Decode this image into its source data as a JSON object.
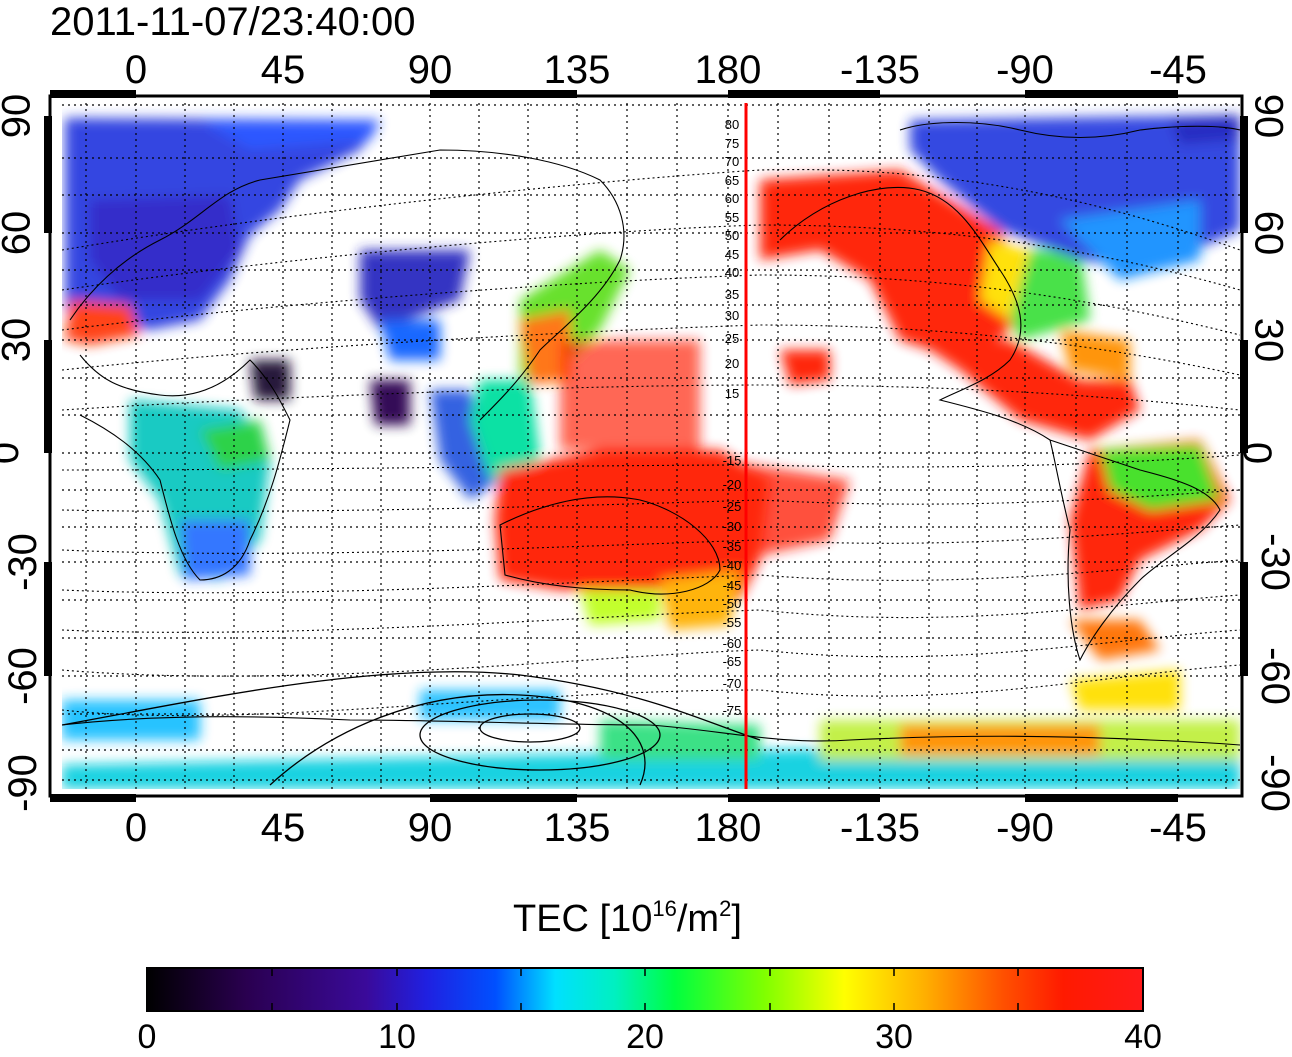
{
  "title": "2011-11-07/23:40:00",
  "x_ticks_top": [
    "0",
    "45",
    "90",
    "135",
    "180",
    "-135",
    "-90",
    "-45"
  ],
  "x_ticks_bottom": [
    "0",
    "45",
    "90",
    "135",
    "180",
    "-135",
    "-90",
    "-45"
  ],
  "y_ticks_left": [
    "90",
    "60",
    "30",
    "0",
    "-30",
    "-60",
    "-90"
  ],
  "y_ticks_right": [
    "90",
    "60",
    "30",
    "0",
    "-30",
    "-60",
    "-90"
  ],
  "magnetic_lat_labels": [
    "80",
    "75",
    "70",
    "65",
    "60",
    "55",
    "50",
    "45",
    "40",
    "35",
    "30",
    "25",
    "20",
    "15",
    "-15",
    "-20",
    "-25",
    "-30",
    "-35",
    "-40",
    "-45",
    "-50",
    "-55",
    "-60",
    "-65",
    "-70",
    "-75"
  ],
  "colorbar": {
    "label_prefix": "TEC  [10",
    "label_sup1": "16",
    "label_mid": "/m",
    "label_sup2": "2",
    "label_suffix": "]",
    "ticks": [
      "0",
      "10",
      "20",
      "30",
      "40"
    ],
    "min": 0,
    "max": 40
  },
  "colors": {
    "high_tec": "#ff1a00",
    "terminator_line": "#ff0000",
    "coast": "#000000"
  }
}
